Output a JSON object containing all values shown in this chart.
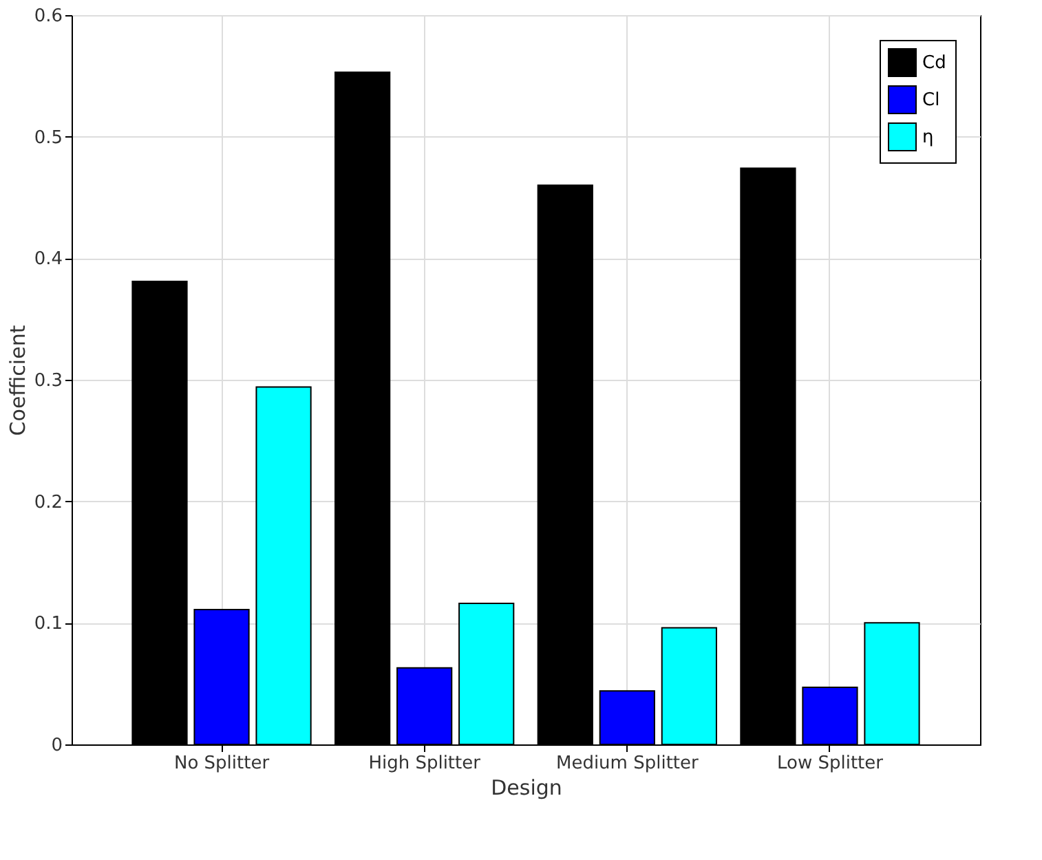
{
  "chart_data": {
    "type": "bar",
    "xlabel": "Design",
    "ylabel": "Coefficient",
    "categories": [
      "No Splitter",
      "High Splitter",
      "Medium Splitter",
      "Low Splitter"
    ],
    "series": [
      {
        "name": "Cd",
        "color": "#000000",
        "values": [
          0.381,
          0.553,
          0.46,
          0.474
        ]
      },
      {
        "name": "Cl",
        "color": "#0000ff",
        "values": [
          0.111,
          0.063,
          0.044,
          0.047
        ]
      },
      {
        "name": "η",
        "color": "#00ffff",
        "values": [
          0.294,
          0.116,
          0.096,
          0.1
        ]
      }
    ],
    "ylim": [
      0,
      0.6
    ],
    "yticks": [
      0,
      0.1,
      0.2,
      0.3,
      0.4,
      0.5,
      0.6
    ],
    "grid": true,
    "legend": "top right"
  }
}
